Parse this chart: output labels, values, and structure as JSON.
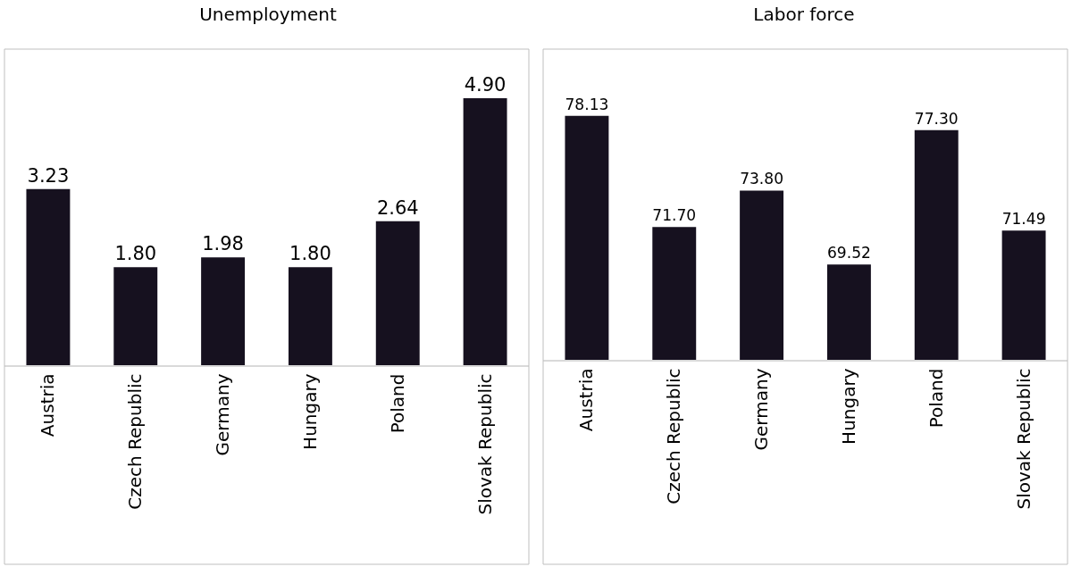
{
  "chart_data": [
    {
      "type": "bar",
      "title": "Unemployment",
      "categories": [
        "Austria",
        "Czech Republic",
        "Germany",
        "Hungary",
        "Poland",
        "Slovak Republic"
      ],
      "values": [
        3.23,
        1.8,
        1.98,
        1.8,
        2.64,
        4.9
      ],
      "value_labels": [
        "3.23",
        "1.80",
        "1.98",
        "1.80",
        "2.64",
        "4.90"
      ],
      "color": "#16111f",
      "ylim": [
        0,
        5.8
      ]
    },
    {
      "type": "bar",
      "title": "Labor force",
      "categories": [
        "Austria",
        "Czech Republic",
        "Germany",
        "Hungary",
        "Poland",
        "Slovak Republic"
      ],
      "values": [
        78.13,
        71.7,
        73.8,
        69.52,
        77.3,
        71.49
      ],
      "value_labels": [
        "78.13",
        "71.70",
        "73.80",
        "69.52",
        "77.30",
        "71.49"
      ],
      "color": "#16111f",
      "ylim": [
        64,
        82
      ]
    }
  ]
}
